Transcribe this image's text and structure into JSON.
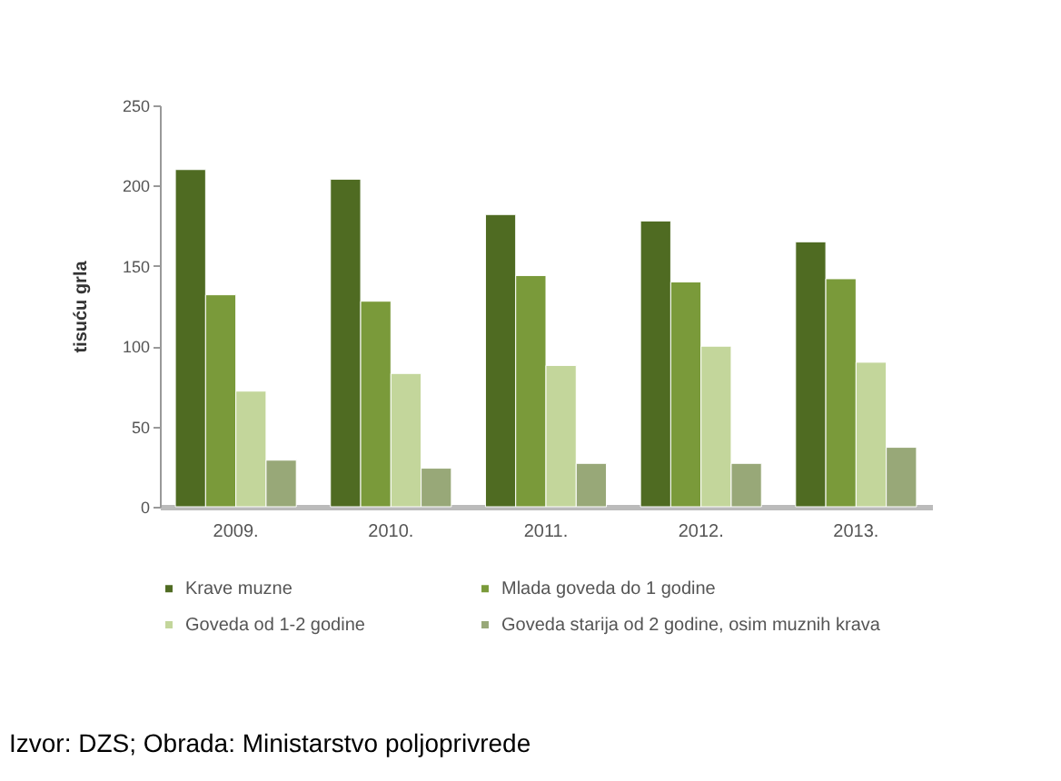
{
  "chart_data": {
    "type": "bar",
    "ylabel": "tisuću grla",
    "categories": [
      "2009.",
      "2010.",
      "2011.",
      "2012.",
      "2013."
    ],
    "series": [
      {
        "name": "Krave muzne",
        "color": "#4f6b22",
        "values": [
          210,
          204,
          182,
          178,
          165
        ]
      },
      {
        "name": "Mlada goveda do 1 godine",
        "color": "#7a9a3a",
        "values": [
          132,
          128,
          144,
          140,
          142
        ]
      },
      {
        "name": "Goveda od 1-2 godine",
        "color": "#c3d69b",
        "values": [
          72,
          83,
          88,
          100,
          90
        ]
      },
      {
        "name": "Goveda starija od 2 godine, osim muznih krava",
        "color": "#98a878",
        "values": [
          29,
          24,
          27,
          27,
          37
        ]
      }
    ],
    "ylim": [
      0,
      250
    ],
    "yticks": [
      0,
      50,
      100,
      150,
      200,
      250
    ],
    "legend": "bottom",
    "annotations": [
      "Izvor: DZS; Obrada: Ministarstvo poljoprivrede"
    ]
  }
}
